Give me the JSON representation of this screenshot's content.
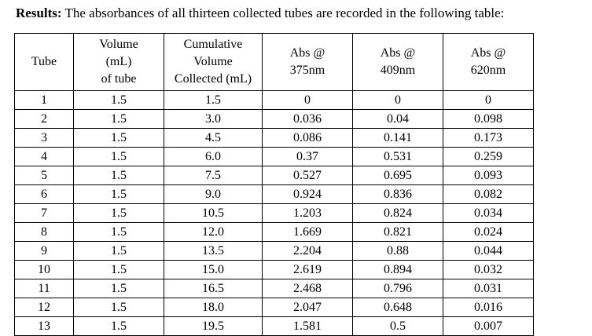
{
  "results": {
    "heading": "Results:",
    "text": " The absorbances of all thirteen collected tubes are recorded in the following table:"
  },
  "table": {
    "headers": [
      [
        "Tube"
      ],
      [
        "Volume",
        "(mL)",
        "of tube"
      ],
      [
        "Cumulative",
        "Volume",
        "Collected (mL)"
      ],
      [
        "Abs @",
        "375nm"
      ],
      [
        "Abs @",
        "409nm"
      ],
      [
        "Abs @",
        "620nm"
      ]
    ],
    "rows": [
      [
        "1",
        "1.5",
        "1.5",
        "0",
        "0",
        "0"
      ],
      [
        "2",
        "1.5",
        "3.0",
        "0.036",
        "0.04",
        "0.098"
      ],
      [
        "3",
        "1.5",
        "4.5",
        "0.086",
        "0.141",
        "0.173"
      ],
      [
        "4",
        "1.5",
        "6.0",
        "0.37",
        "0.531",
        "0.259"
      ],
      [
        "5",
        "1.5",
        "7.5",
        "0.527",
        "0.695",
        "0.093"
      ],
      [
        "6",
        "1.5",
        "9.0",
        "0.924",
        "0.836",
        "0.082"
      ],
      [
        "7",
        "1.5",
        "10.5",
        "1.203",
        "0.824",
        "0.034"
      ],
      [
        "8",
        "1.5",
        "12.0",
        "1.669",
        "0.821",
        "0.024"
      ],
      [
        "9",
        "1.5",
        "13.5",
        "2.204",
        "0.88",
        "0.044"
      ],
      [
        "10",
        "1.5",
        "15.0",
        "2.619",
        "0.894",
        "0.032"
      ],
      [
        "11",
        "1.5",
        "16.5",
        "2.468",
        "0.796",
        "0.031"
      ],
      [
        "12",
        "1.5",
        "18.0",
        "2.047",
        "0.648",
        "0.016"
      ],
      [
        "13",
        "1.5",
        "19.5",
        "1.581",
        "0.5",
        "0.007"
      ]
    ]
  }
}
